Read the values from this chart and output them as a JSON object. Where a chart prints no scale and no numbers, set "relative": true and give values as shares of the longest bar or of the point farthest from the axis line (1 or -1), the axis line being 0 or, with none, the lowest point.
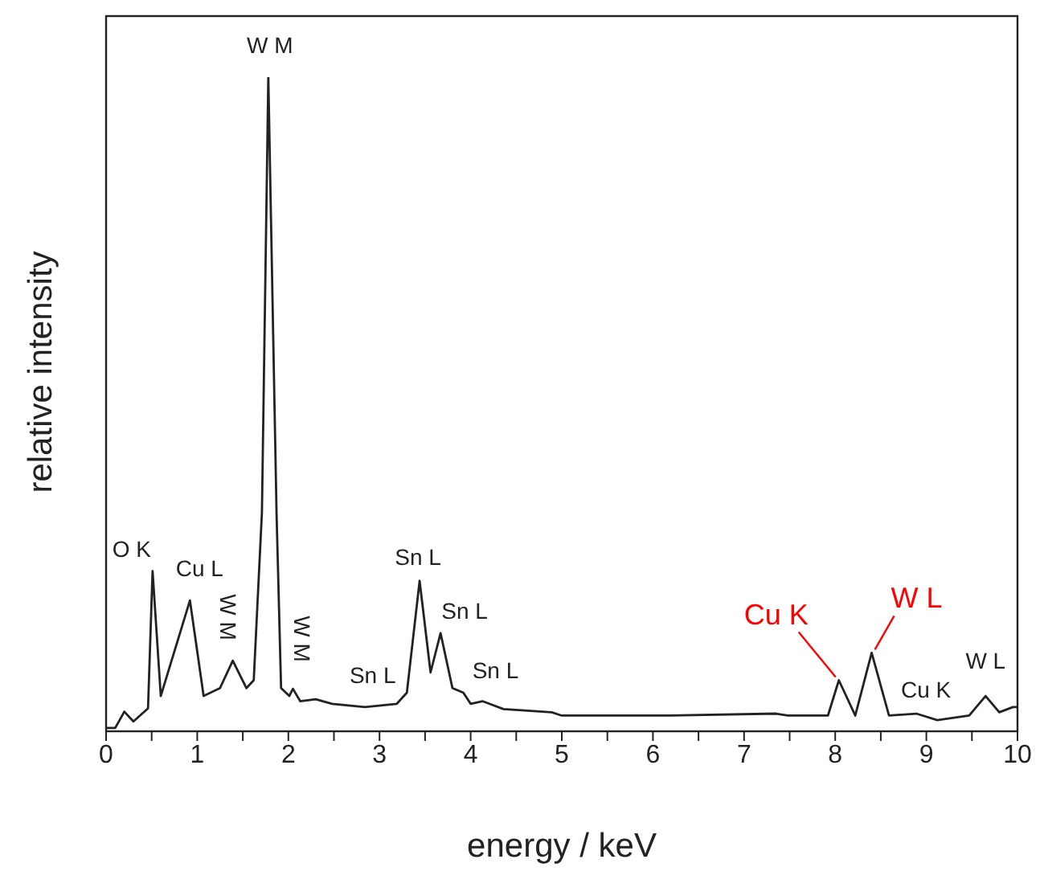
{
  "chart_data": {
    "type": "line",
    "relative": true,
    "xlabel": "energy / keV",
    "ylabel": "relative intensity",
    "xlim": [
      0,
      10
    ],
    "xticks": [
      0,
      {
        "value": 0.5,
        "label": null
      },
      1,
      {
        "value": 1.5,
        "label": null
      },
      2,
      {
        "value": 2.5,
        "label": null
      },
      3,
      {
        "value": 3.5,
        "label": null
      },
      4,
      {
        "value": 4.5,
        "label": null
      },
      5,
      {
        "value": 5.5,
        "label": null
      },
      6,
      {
        "value": 6.5,
        "label": null
      },
      7,
      {
        "value": 7.5,
        "label": null
      },
      8,
      {
        "value": 8.5,
        "label": null
      },
      9,
      {
        "value": 9.5,
        "label": null
      },
      10
    ],
    "x": [
      0,
      0.1,
      0.2,
      0.3,
      0.46,
      0.51,
      0.6,
      0.92,
      1.07,
      1.25,
      1.39,
      1.54,
      1.62,
      1.71,
      1.78,
      1.87,
      1.92,
      2.01,
      2.05,
      2.13,
      2.3,
      2.48,
      2.84,
      3.19,
      3.3,
      3.44,
      3.56,
      3.67,
      3.8,
      3.92,
      4.0,
      4.13,
      4.36,
      4.89,
      5.0,
      6.19,
      7.35,
      7.48,
      7.92,
      8.04,
      8.22,
      8.4,
      8.59,
      8.89,
      9.12,
      9.47,
      9.65,
      9.8,
      9.95,
      10.0
    ],
    "series": [
      {
        "color": "#222222",
        "values": [
          0.005,
          0.005,
          0.03,
          0.015,
          0.035,
          0.245,
          0.054,
          0.2,
          0.054,
          0.066,
          0.108,
          0.066,
          0.078,
          0.335,
          1.0,
          0.335,
          0.066,
          0.054,
          0.065,
          0.046,
          0.049,
          0.042,
          0.037,
          0.042,
          0.059,
          0.23,
          0.09,
          0.15,
          0.066,
          0.059,
          0.042,
          0.046,
          0.034,
          0.029,
          0.024,
          0.024,
          0.027,
          0.024,
          0.024,
          0.078,
          0.024,
          0.12,
          0.024,
          0.027,
          0.017,
          0.024,
          0.054,
          0.029,
          0.037,
          0.037
        ]
      }
    ],
    "marker": "none",
    "line_style": "solid",
    "annotations": [
      {
        "text": "O K",
        "x": 0.51,
        "y": 0.245
      },
      {
        "text": "Cu L",
        "x": 0.92,
        "y": 0.2
      },
      {
        "text": "W M",
        "x": 1.39,
        "y": 0.108
      },
      {
        "text": "W M",
        "x": 1.78,
        "y": 1.0
      },
      {
        "text": "W M",
        "x": 2.05,
        "y": 0.065
      },
      {
        "text": "Sn L",
        "x": 3.19,
        "y": 0.042
      },
      {
        "text": "Sn L",
        "x": 3.44,
        "y": 0.23
      },
      {
        "text": "Sn L",
        "x": 3.67,
        "y": 0.15
      },
      {
        "text": "Sn L",
        "x": 3.92,
        "y": 0.059
      },
      {
        "text": "Cu K",
        "x": 8.04,
        "y": 0.078
      },
      {
        "text": "W L",
        "x": 8.4,
        "y": 0.12
      },
      {
        "text": "Cu K",
        "x": 8.89,
        "y": 0.027
      },
      {
        "text": "W L",
        "x": 9.65,
        "y": 0.054
      }
    ]
  }
}
